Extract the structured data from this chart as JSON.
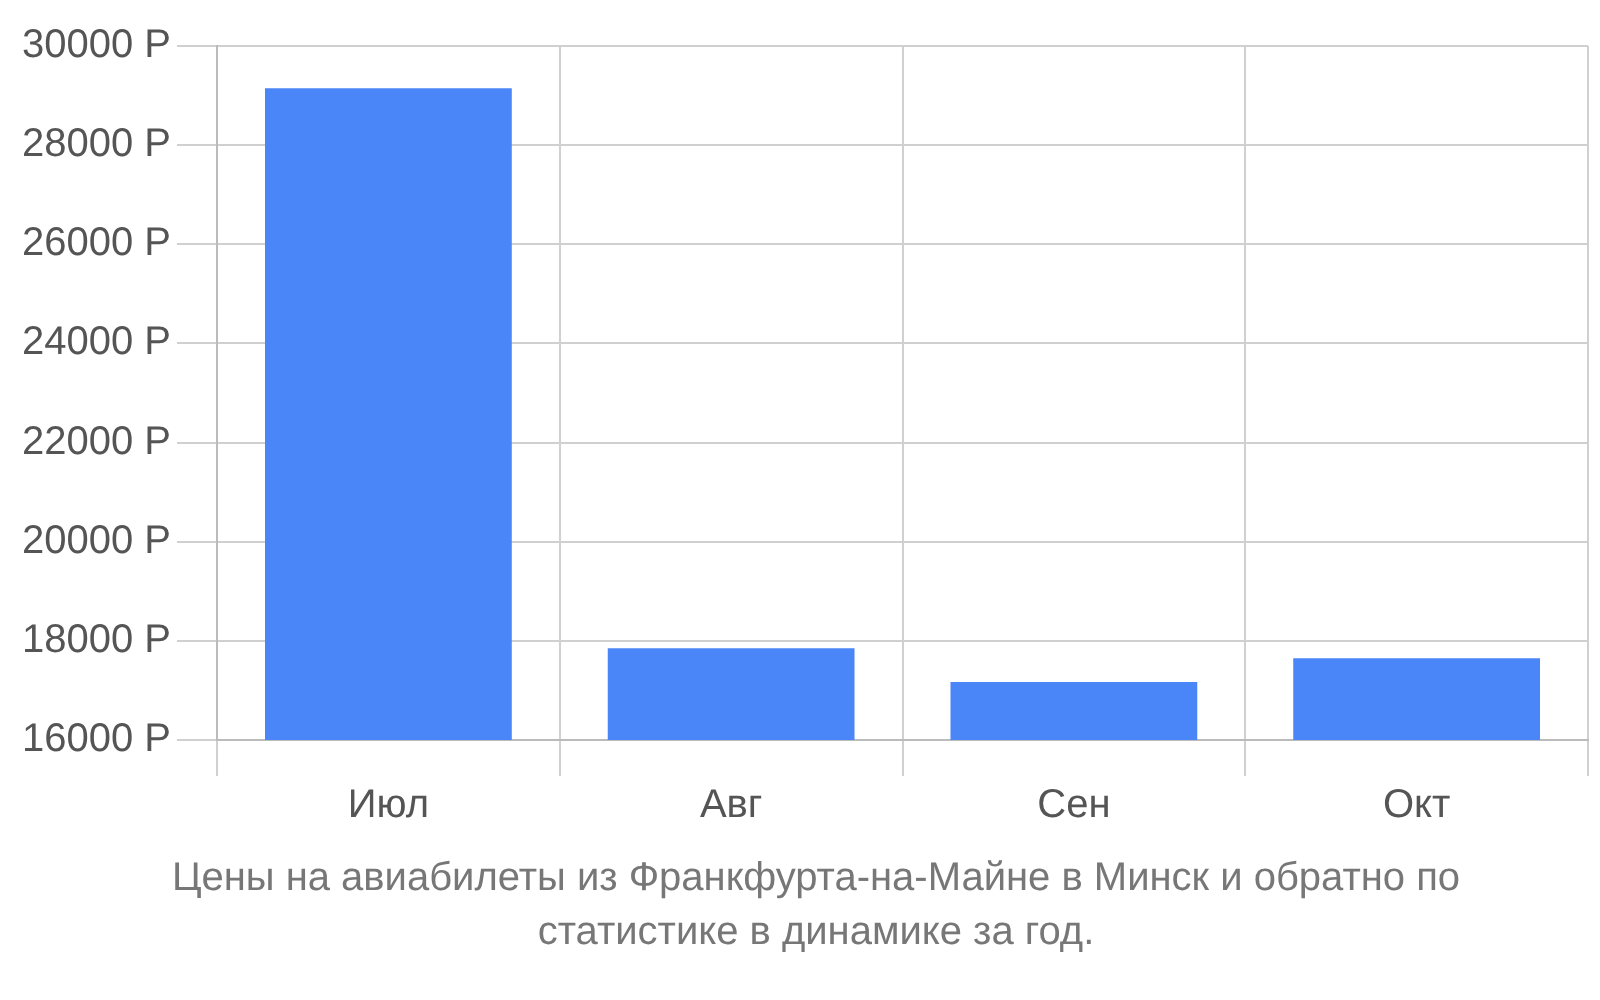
{
  "chart_data": {
    "type": "bar",
    "categories": [
      "Июл",
      "Авг",
      "Сен",
      "Окт"
    ],
    "values": [
      29150,
      17850,
      17170,
      17650
    ],
    "color": "#4a86f8",
    "ylim": [
      16000,
      30000
    ],
    "yticks": [
      {
        "value": 16000,
        "label": "16000 Р"
      },
      {
        "value": 18000,
        "label": "18000 Р"
      },
      {
        "value": 20000,
        "label": "20000 Р"
      },
      {
        "value": 22000,
        "label": "22000 Р"
      },
      {
        "value": 24000,
        "label": "24000 Р"
      },
      {
        "value": 26000,
        "label": "26000 Р"
      },
      {
        "value": 28000,
        "label": "28000 Р"
      },
      {
        "value": 30000,
        "label": "30000 Р"
      }
    ],
    "grid": true,
    "legend": false,
    "annotations": [
      "Цены на авиабилеты из Франкфурта-на-Майне в Минск и обратно по статистике в динамике за год."
    ]
  }
}
